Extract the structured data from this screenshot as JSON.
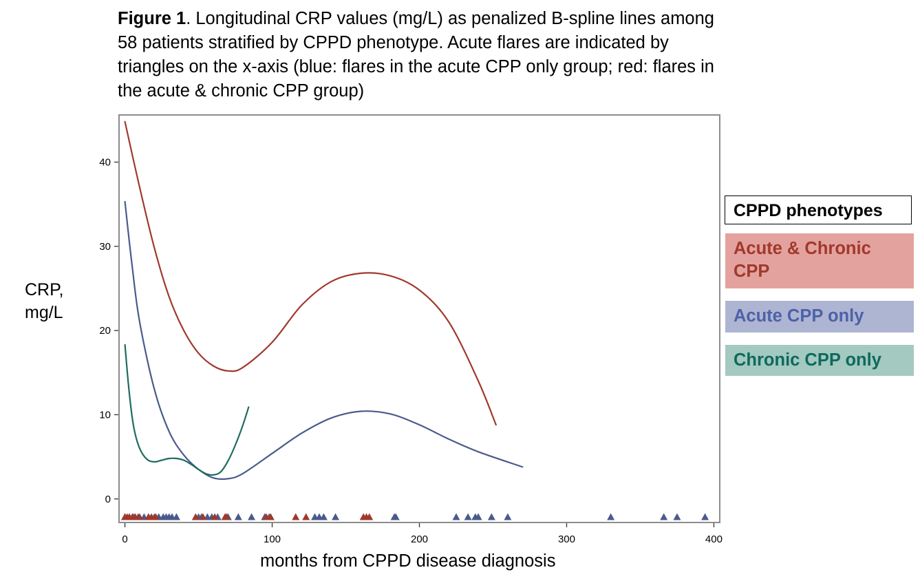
{
  "caption": {
    "bold": "Figure 1",
    "text": ". Longitudinal CRP values (mg/L) as penalized B-spline lines among 58 patients stratified by CPPD phenotype. Acute flares are indicated by triangles on the x-axis (blue: flares in the acute CPP only group; red: flares in the acute & chronic CPP group)"
  },
  "chart_data": {
    "type": "line",
    "title": "",
    "xlabel": "months from CPPD disease diagnosis",
    "ylabel_line1": "CRP,",
    "ylabel_line2": "mg/L",
    "xlim": [
      -4,
      404
    ],
    "ylim": [
      -2.8,
      45.6
    ],
    "xticks": [
      0,
      100,
      200,
      300,
      400
    ],
    "yticks": [
      0,
      10,
      20,
      30,
      40
    ],
    "series": [
      {
        "name": "Acute & Chronic CPP",
        "color": "#a0392c",
        "x": [
          0,
          10,
          20,
          30,
          40,
          50,
          60,
          70,
          80,
          100,
          120,
          140,
          160,
          180,
          200,
          220,
          240,
          252
        ],
        "y": [
          44.8,
          37.0,
          29.8,
          24.0,
          20.0,
          17.3,
          15.8,
          15.2,
          15.6,
          18.6,
          23.0,
          25.8,
          26.8,
          26.5,
          24.8,
          21.0,
          14.0,
          8.8
        ]
      },
      {
        "name": "Acute CPP only",
        "color": "#4a5a8c",
        "x": [
          0,
          5,
          10,
          20,
          30,
          40,
          50,
          60,
          70,
          80,
          100,
          120,
          140,
          160,
          180,
          200,
          220,
          240,
          270
        ],
        "y": [
          35.3,
          27.5,
          21.0,
          13.0,
          8.0,
          5.2,
          3.5,
          2.5,
          2.4,
          3.0,
          5.4,
          7.8,
          9.6,
          10.4,
          10.1,
          8.8,
          7.1,
          5.6,
          3.8
        ]
      },
      {
        "name": "Chronic CPP only",
        "color": "#1e6b5e",
        "x": [
          0,
          3,
          6,
          10,
          15,
          20,
          25,
          30,
          35,
          40,
          45,
          50,
          55,
          60,
          65,
          70,
          75,
          80,
          84
        ],
        "y": [
          18.3,
          12.5,
          8.5,
          6.0,
          4.7,
          4.4,
          4.6,
          4.8,
          4.8,
          4.6,
          4.1,
          3.5,
          3.0,
          2.85,
          3.2,
          4.5,
          6.4,
          8.7,
          10.9
        ]
      }
    ],
    "flares": {
      "y": -2.1,
      "acute_and_chronic_color": "#a0392c",
      "acute_only_color": "#4a5a8c",
      "acute_and_chronic": [
        0,
        1.5,
        3,
        5,
        7,
        10,
        16,
        18,
        21,
        48,
        53,
        61,
        68,
        69,
        96,
        99,
        116,
        123,
        162,
        164,
        166
      ],
      "acute_only": [
        0,
        3,
        6,
        9,
        13,
        16,
        20,
        23,
        26,
        28,
        30,
        32,
        35,
        50,
        52,
        56,
        59,
        63,
        70,
        77,
        86,
        95,
        98,
        129,
        132,
        135,
        143,
        183,
        184,
        225,
        233,
        238,
        240,
        249,
        260,
        330,
        366,
        375,
        394
      ]
    }
  },
  "legend": {
    "title": "CPPD phenotypes",
    "items": [
      {
        "label": "Acute & Chronic CPP",
        "bg": "#e4a29f",
        "color": "#a0392c"
      },
      {
        "label": "Acute CPP only",
        "bg": "#adb5d2",
        "color": "#4f61a8"
      },
      {
        "label": "Chronic CPP only",
        "bg": "#a3c9c1",
        "color": "#0e6a5c"
      }
    ]
  }
}
